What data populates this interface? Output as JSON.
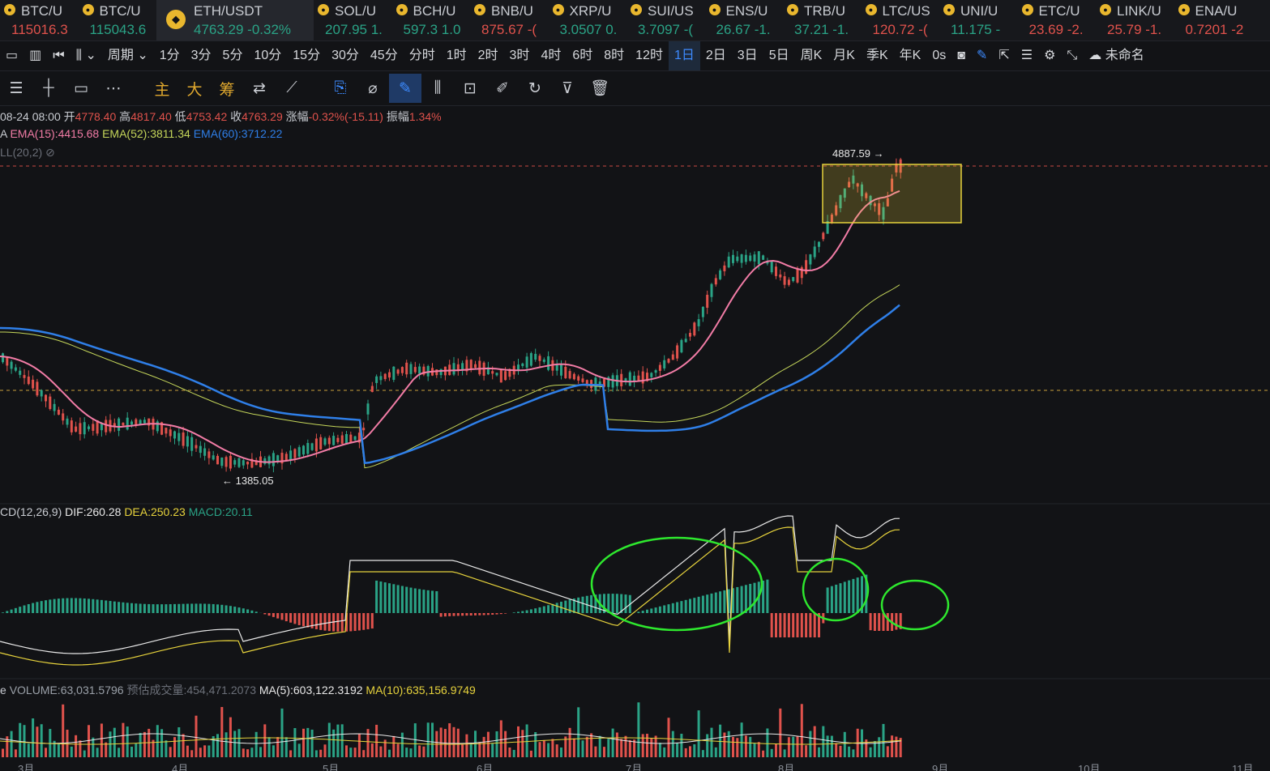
{
  "tickers": [
    {
      "name": "BTC/U",
      "price": "115016.3",
      "dir": "dn",
      "icon": "btc-icon"
    },
    {
      "name": "BTC/U",
      "price": "115043.6",
      "dir": "up",
      "icon": "btc-icon"
    },
    {
      "name": "ETH/USDT",
      "price": "4763.29 -0.32%",
      "dir": "up",
      "icon": "binance-icon",
      "active": true
    },
    {
      "name": "SOL/U",
      "price": "207.95 1.",
      "dir": "up",
      "icon": "coin-icon"
    },
    {
      "name": "BCH/U",
      "price": "597.3 1.0",
      "dir": "up",
      "icon": "coin-icon"
    },
    {
      "name": "BNB/U",
      "price": "875.67 -(",
      "dir": "dn",
      "icon": "coin-icon"
    },
    {
      "name": "XRP/U",
      "price": "3.0507 0.",
      "dir": "up",
      "icon": "coin-icon"
    },
    {
      "name": "SUI/US",
      "price": "3.7097 -(",
      "dir": "up",
      "icon": "coin-icon"
    },
    {
      "name": "ENS/U",
      "price": "26.67 -1.",
      "dir": "up",
      "icon": "coin-icon"
    },
    {
      "name": "TRB/U",
      "price": "37.21 -1.",
      "dir": "up",
      "icon": "coin-icon"
    },
    {
      "name": "LTC/US",
      "price": "120.72 -(",
      "dir": "dn",
      "icon": "coin-icon"
    },
    {
      "name": "UNI/U",
      "price": "11.175 -",
      "dir": "up",
      "icon": "coin-icon"
    },
    {
      "name": "ETC/U",
      "price": "23.69 -2.",
      "dir": "dn",
      "icon": "coin-icon"
    },
    {
      "name": "LINK/U",
      "price": "25.79 -1.",
      "dir": "dn",
      "icon": "coin-icon"
    },
    {
      "name": "ENA/U",
      "price": "0.7201 -2",
      "dir": "dn",
      "icon": "coin-icon"
    }
  ],
  "periods": [
    "周期",
    "1分",
    "3分",
    "5分",
    "10分",
    "15分",
    "30分",
    "45分",
    "分时",
    "1时",
    "2时",
    "3时",
    "4时",
    "6时",
    "8时",
    "12时",
    "1日",
    "2日",
    "3日",
    "5日",
    "周K",
    "月K",
    "季K",
    "年K",
    "0s"
  ],
  "selected_period": "1日",
  "unnamed_label": "未命名",
  "tools_text": [
    "主",
    "大",
    "筹"
  ],
  "ohlc": {
    "date": "08-24 08:00",
    "open_label": "开",
    "open": "4778.40",
    "high_label": "高",
    "high": "4817.40",
    "low_label": "低",
    "low": "4753.42",
    "close_label": "收",
    "close": "4763.29",
    "chg_label": "涨幅",
    "chg": "-0.32%(-15.11)",
    "amp_label": "振幅",
    "amp": "1.34%"
  },
  "ema": {
    "prefix": "A",
    "ema15": "EMA(15):4415.68",
    "ema52": "EMA(52):3811.34",
    "ema60": "EMA(60):3712.22"
  },
  "boll": "LL(20,2)",
  "high_mark": "4887.59",
  "low_mark": "1385.05",
  "macd": {
    "label": "CD(12,26,9)",
    "dif": "DIF:260.28",
    "dea": "DEA:250.23",
    "macd": "MACD:20.11"
  },
  "volume": {
    "label": "e",
    "vol": "VOLUME:63,031.5796",
    "est": "预估成交量:454,471.2073",
    "ma5": "MA(5):603,122.3192",
    "ma10": "MA(10):635,156.9749"
  },
  "months": [
    "3月",
    "4月",
    "5月",
    "6月",
    "7月",
    "8月",
    "9月",
    "10月",
    "11月"
  ],
  "colors": {
    "up": "#2aa386",
    "down": "#e0524c",
    "ema15": "#f27ca6",
    "ema52": "#c5d65a",
    "ema60": "#2f7fe8",
    "dif": "#e8e8e8",
    "dea": "#e6d23c",
    "annot": "#2ee82e",
    "box": "#e6d23c"
  }
}
